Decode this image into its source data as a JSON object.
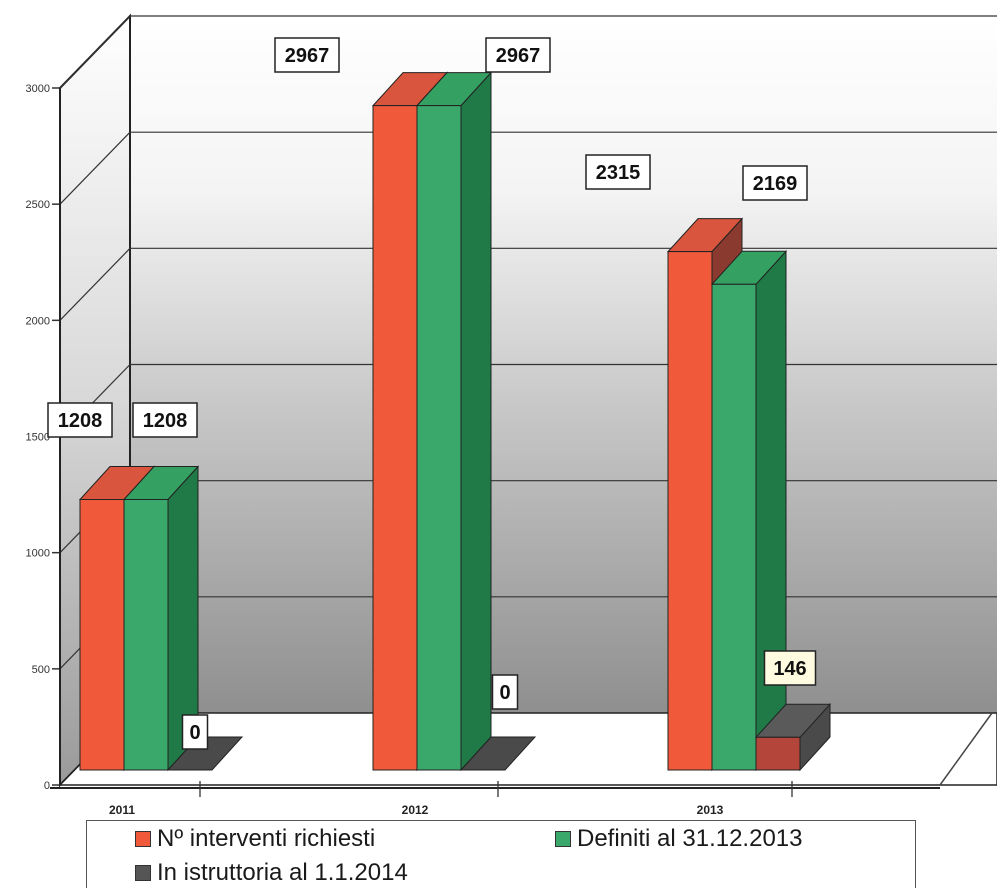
{
  "chart_data": {
    "type": "bar",
    "categories": [
      "2011",
      "2012",
      "2013"
    ],
    "series": [
      {
        "name": "Nº interventi richiesti",
        "values": [
          1208,
          2967,
          2315
        ],
        "color": "#f05a3a"
      },
      {
        "name": "Definiti al 31.12.2013",
        "values": [
          1208,
          2967,
          2169
        ],
        "color": "#3aa86a"
      },
      {
        "name": "In istruttoria al 1.1.2014",
        "values": [
          0,
          0,
          146
        ],
        "color": "#555555"
      }
    ],
    "data_labels": [
      [
        "1208",
        "1208",
        "0"
      ],
      [
        "2967",
        "2967",
        "0"
      ],
      [
        "2315",
        "2169",
        "146"
      ]
    ],
    "yticks": [
      "0",
      "500",
      "1000",
      "1500",
      "2000",
      "2500",
      "3000"
    ],
    "ylim": [
      0,
      3000
    ],
    "grid": true,
    "legend_position": "bottom"
  }
}
